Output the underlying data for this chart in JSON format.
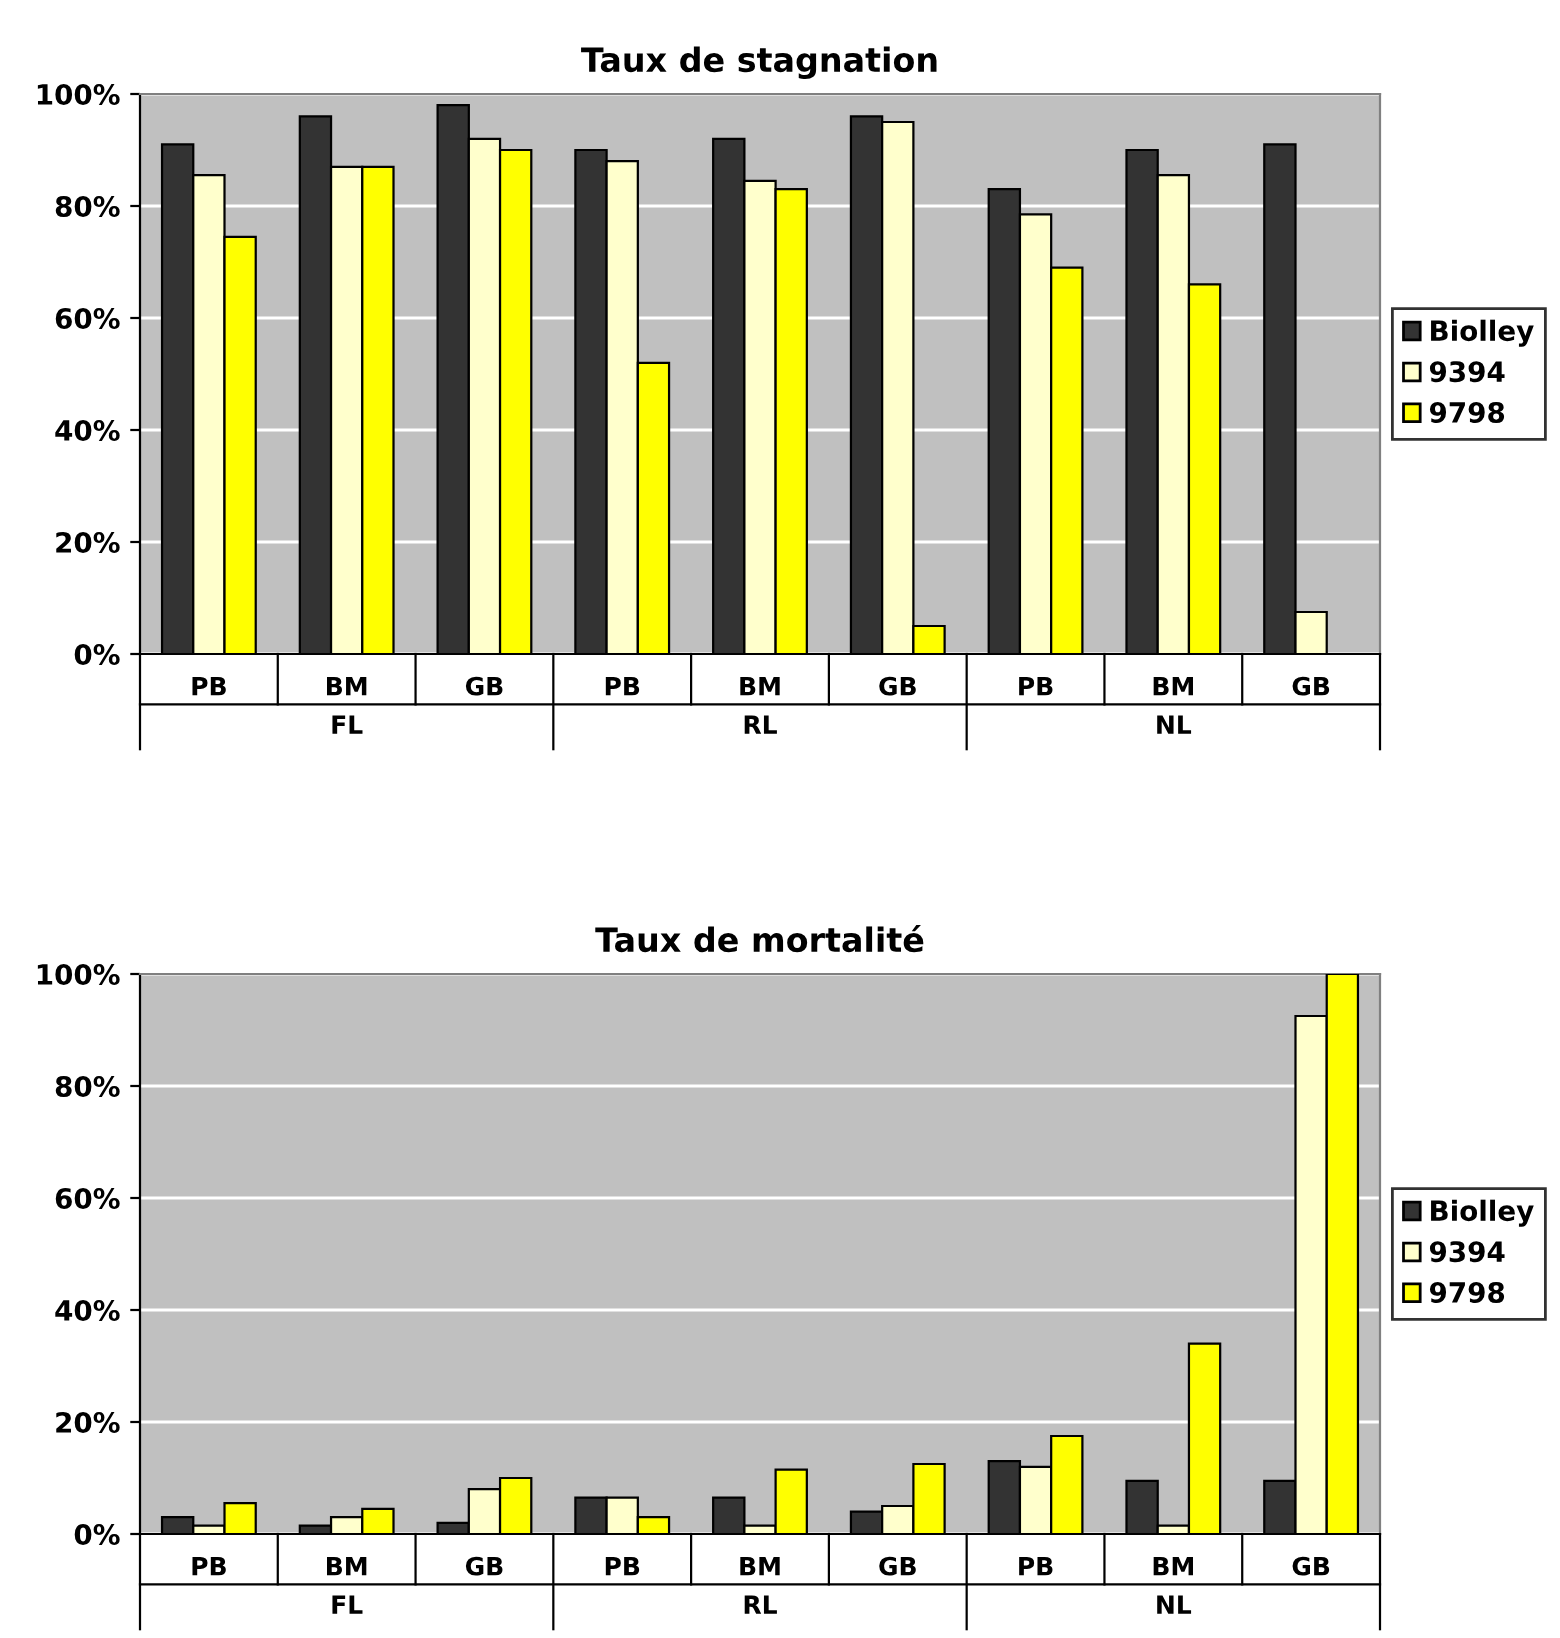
{
  "chart_data": [
    {
      "type": "bar",
      "title": "Taux de stagnation",
      "categories": [
        "PB",
        "BM",
        "GB",
        "PB",
        "BM",
        "GB",
        "PB",
        "BM",
        "GB"
      ],
      "annotations": [
        "FL",
        "RL",
        "NL"
      ],
      "series": [
        {
          "name": "Biolley",
          "color": "#333333",
          "values": [
            91,
            96,
            98,
            90,
            92,
            96,
            83,
            90,
            91
          ]
        },
        {
          "name": "9394",
          "color": "#ffffcc",
          "values": [
            85.5,
            87,
            92,
            88,
            84.5,
            95,
            78.5,
            85.5,
            7.5
          ]
        },
        {
          "name": "9798",
          "color": "#ffff00",
          "values": [
            74.5,
            87,
            90,
            52,
            83,
            5,
            69,
            66,
            null
          ]
        }
      ],
      "ylim": [
        0,
        100
      ],
      "yticks": [
        {
          "value": 0,
          "label": "0%"
        },
        {
          "value": 20,
          "label": "20%"
        },
        {
          "value": 40,
          "label": "40%"
        },
        {
          "value": 60,
          "label": "60%"
        },
        {
          "value": 80,
          "label": "80%"
        },
        {
          "value": 100,
          "label": "100%"
        }
      ],
      "grid": "y",
      "legend": "right"
    },
    {
      "type": "bar",
      "title": "Taux de mortalité",
      "categories": [
        "PB",
        "BM",
        "GB",
        "PB",
        "BM",
        "GB",
        "PB",
        "BM",
        "GB"
      ],
      "annotations": [
        "FL",
        "RL",
        "NL"
      ],
      "series": [
        {
          "name": "Biolley",
          "color": "#333333",
          "values": [
            3,
            1.5,
            2,
            6.5,
            6.5,
            4,
            13,
            9.5,
            9.5
          ]
        },
        {
          "name": "9394",
          "color": "#ffffcc",
          "values": [
            1.5,
            3,
            8,
            6.5,
            1.5,
            5,
            12,
            1.5,
            92.5
          ]
        },
        {
          "name": "9798",
          "color": "#ffff00",
          "values": [
            5.5,
            4.5,
            10,
            3,
            11.5,
            12.5,
            17.5,
            34,
            100
          ]
        }
      ],
      "ylim": [
        0,
        100
      ],
      "yticks": [
        {
          "value": 0,
          "label": "0%"
        },
        {
          "value": 20,
          "label": "20%"
        },
        {
          "value": 40,
          "label": "40%"
        },
        {
          "value": 60,
          "label": "60%"
        },
        {
          "value": 80,
          "label": "80%"
        },
        {
          "value": 100,
          "label": "100%"
        }
      ],
      "grid": "y",
      "legend": "right"
    }
  ]
}
